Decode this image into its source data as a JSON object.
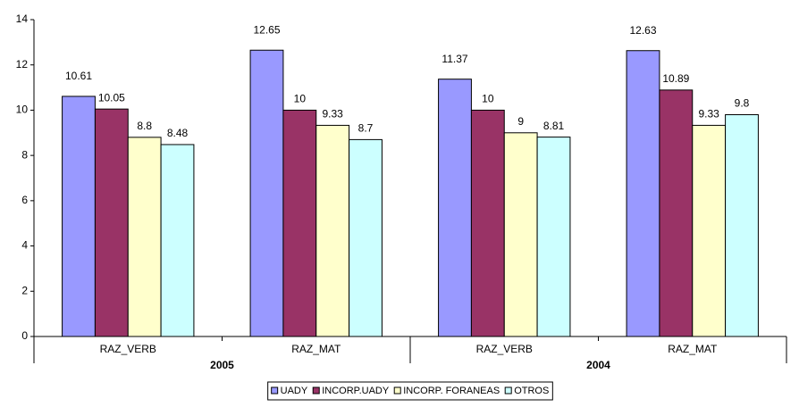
{
  "chart_data": {
    "type": "bar",
    "categories": [
      "RAZ_VERB",
      "RAZ_MAT",
      "RAZ_VERB",
      "RAZ_MAT"
    ],
    "group_labels": [
      "2005",
      "2004"
    ],
    "series": [
      {
        "name": "UADY",
        "color": "#9999ff",
        "values": [
          10.61,
          12.65,
          11.37,
          12.63
        ]
      },
      {
        "name": "INCORP.UADY",
        "color": "#993366",
        "values": [
          10.05,
          10,
          10,
          10.89
        ]
      },
      {
        "name": "INCORP. FORANEAS",
        "color": "#ffffcc",
        "values": [
          8.8,
          9.33,
          9,
          9.33
        ]
      },
      {
        "name": "OTROS",
        "color": "#ccffff",
        "values": [
          8.48,
          8.7,
          8.81,
          9.8
        ]
      }
    ],
    "ylim": [
      0,
      14
    ],
    "yticks": [
      0,
      2,
      4,
      6,
      8,
      10,
      12,
      14
    ],
    "grid": false,
    "legend": "bottom"
  }
}
